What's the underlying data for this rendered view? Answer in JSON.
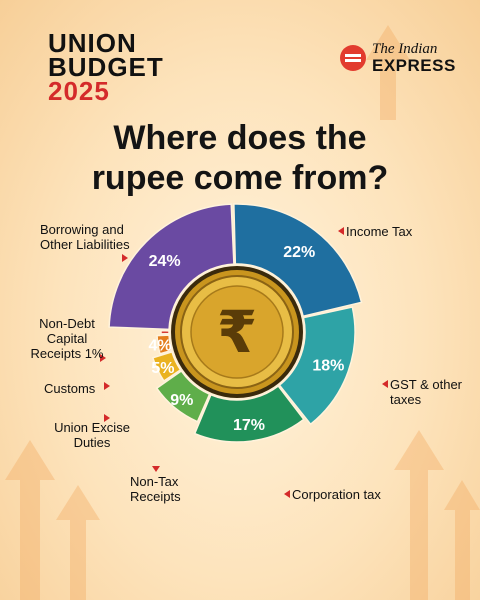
{
  "brand": {
    "budget_line1": "UNION",
    "budget_line2": "BUDGET",
    "budget_year": "2025",
    "publisher_line1": "The Indian",
    "publisher_line2": "EXPRESS",
    "publisher_color": "#e23b2e",
    "year_color": "#d42a2a"
  },
  "chart_data": {
    "type": "pie",
    "title": "Where does the rupee come from?",
    "slices": [
      {
        "label": "Income Tax",
        "value": 22,
        "value_label": "22%",
        "color": "#1f6fa0"
      },
      {
        "label": "GST & other taxes",
        "value": 18,
        "value_label": "18%",
        "color": "#2ea3a6"
      },
      {
        "label": "Corporation tax",
        "value": 17,
        "value_label": "17%",
        "color": "#21915a"
      },
      {
        "label": "Non-Tax Receipts",
        "value": 9,
        "value_label": "9%",
        "color": "#5fae4a"
      },
      {
        "label": "Union Excise Duties",
        "value": 5,
        "value_label": "5%",
        "color": "#eab21f"
      },
      {
        "label": "Customs",
        "value": 4,
        "value_label": "4%",
        "color": "#e37d1c"
      },
      {
        "label": "Non-Debt Capital Receipts 1%",
        "value": 1,
        "value_label": "",
        "color": "#d63b34"
      },
      {
        "label": "Borrowing and Other Liabilities",
        "value": 24,
        "value_label": "24%",
        "color": "#6a4aa2"
      }
    ],
    "center_icon": "rupee-coin-icon",
    "legend_placement": "labels-around-pie"
  }
}
